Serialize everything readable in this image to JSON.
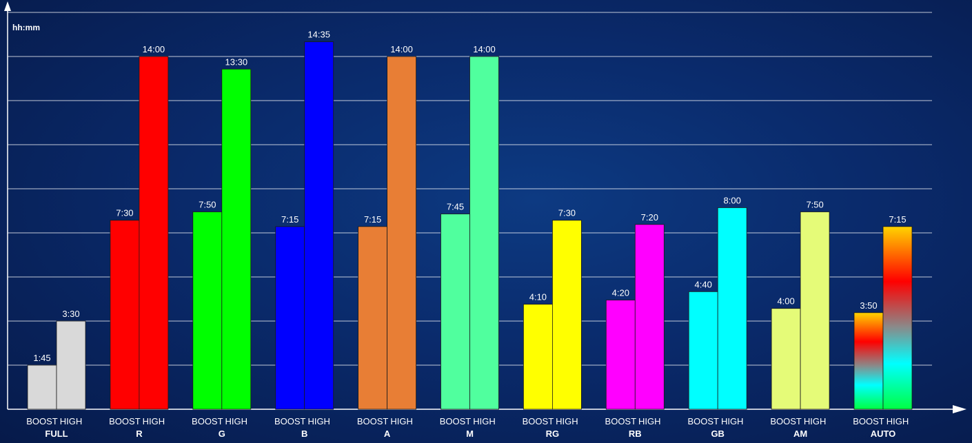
{
  "chart_data": {
    "type": "bar",
    "ylabel": "hh:mm",
    "ylim_minutes": [
      0,
      1050
    ],
    "grid": true,
    "series_labels": [
      "BOOST",
      "HIGH"
    ],
    "categories": [
      {
        "name": "FULL",
        "colors": [
          "#d9d9d9",
          "#d9d9d9"
        ],
        "values": [
          "1:45",
          "3:30"
        ],
        "minutes": [
          105,
          210
        ]
      },
      {
        "name": "R",
        "colors": [
          "#ff0000",
          "#ff0000"
        ],
        "values": [
          "7:30",
          "14:00"
        ],
        "minutes": [
          450,
          840
        ]
      },
      {
        "name": "G",
        "colors": [
          "#00ff00",
          "#00ff00"
        ],
        "values": [
          "7:50",
          "13:30"
        ],
        "minutes": [
          470,
          810
        ]
      },
      {
        "name": "B",
        "colors": [
          "#0000ff",
          "#0000ff"
        ],
        "values": [
          "7:15",
          "14:35"
        ],
        "minutes": [
          435,
          875
        ]
      },
      {
        "name": "A",
        "colors": [
          "#e87e35",
          "#e87e35"
        ],
        "values": [
          "7:15",
          "14:00"
        ],
        "minutes": [
          435,
          840
        ]
      },
      {
        "name": "M",
        "colors": [
          "#50ff9e",
          "#50ff9e"
        ],
        "values": [
          "7:45",
          "14:00"
        ],
        "minutes": [
          465,
          840
        ]
      },
      {
        "name": "RG",
        "colors": [
          "#ffff00",
          "#ffff00"
        ],
        "values": [
          "4:10",
          "7:30"
        ],
        "minutes": [
          250,
          450
        ]
      },
      {
        "name": "RB",
        "colors": [
          "#ff00ff",
          "#ff00ff"
        ],
        "values": [
          "4:20",
          "7:20"
        ],
        "minutes": [
          260,
          440
        ]
      },
      {
        "name": "GB",
        "colors": [
          "#00ffff",
          "#00ffff"
        ],
        "values": [
          "4:40",
          "8:00"
        ],
        "minutes": [
          280,
          480
        ]
      },
      {
        "name": "AM",
        "colors": [
          "#e5fb78",
          "#e5fb78"
        ],
        "values": [
          "4:00",
          "7:50"
        ],
        "minutes": [
          240,
          470
        ]
      },
      {
        "name": "AUTO",
        "colors": [
          "gradient",
          "gradient"
        ],
        "values": [
          "3:50",
          "7:15"
        ],
        "minutes": [
          230,
          435
        ]
      }
    ],
    "auto_gradient": [
      "#ffd400",
      "#ff0000",
      "#00ffff",
      "#00ff44"
    ]
  }
}
